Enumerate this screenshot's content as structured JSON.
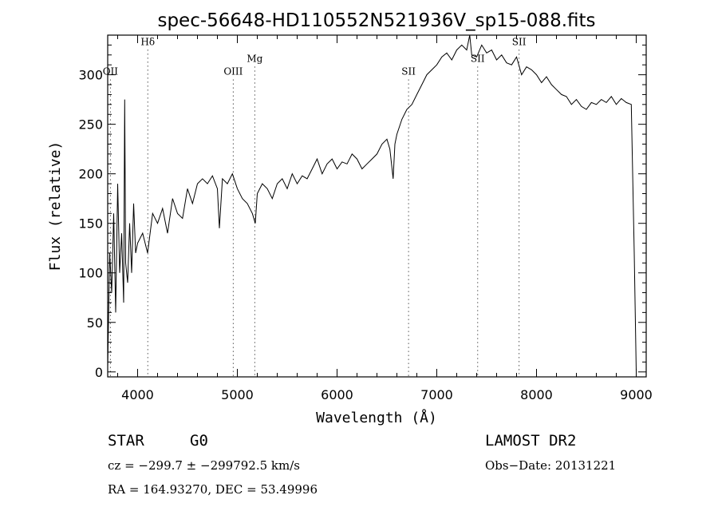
{
  "chart_data": {
    "type": "line",
    "title": "spec-56648-HD110552N521936V_sp15-088.fits",
    "xlabel": "Wavelength (Å)",
    "ylabel": "Flux (relative)",
    "xlim": [
      3700,
      9100
    ],
    "ylim": [
      -5,
      340
    ],
    "xticks": [
      4000,
      5000,
      6000,
      7000,
      8000,
      9000
    ],
    "yticks": [
      0,
      50,
      100,
      150,
      200,
      250,
      300
    ],
    "grid": false,
    "line_color": "#000000",
    "spectral_lines": [
      {
        "label": "OII",
        "wavelength": 3727,
        "label_flux": 300
      },
      {
        "label": "Hδ",
        "wavelength": 4102,
        "label_flux": 330
      },
      {
        "label": "OIII",
        "wavelength": 4959,
        "label_flux": 300
      },
      {
        "label": "Mg",
        "wavelength": 5175,
        "label_flux": 313
      },
      {
        "label": "SII",
        "wavelength": 6717,
        "label_flux": 300
      },
      {
        "label": "SII",
        "wavelength": 7410,
        "label_flux": 313
      },
      {
        "label": "SII",
        "wavelength": 7825,
        "label_flux": 330
      }
    ],
    "series": [
      {
        "x": [
          3700,
          3720,
          3740,
          3760,
          3780,
          3800,
          3820,
          3840,
          3860,
          3870,
          3880,
          3900,
          3920,
          3940,
          3960,
          3980,
          4000,
          4050,
          4100,
          4150,
          4200,
          4250,
          4300,
          4350,
          4400,
          4450,
          4500,
          4550,
          4600,
          4650,
          4700,
          4750,
          4800,
          4820,
          4850,
          4900,
          4950,
          5000,
          5050,
          5100,
          5150,
          5180,
          5200,
          5250,
          5300,
          5350,
          5400,
          5450,
          5500,
          5550,
          5600,
          5650,
          5700,
          5750,
          5800,
          5850,
          5900,
          5950,
          6000,
          6050,
          6100,
          6150,
          6200,
          6250,
          6300,
          6350,
          6400,
          6450,
          6500,
          6530,
          6562,
          6580,
          6600,
          6650,
          6700,
          6750,
          6800,
          6850,
          6900,
          6950,
          7000,
          7050,
          7100,
          7150,
          7200,
          7250,
          7300,
          7330,
          7350,
          7400,
          7450,
          7500,
          7550,
          7600,
          7650,
          7700,
          7750,
          7800,
          7850,
          7900,
          7950,
          8000,
          8050,
          8100,
          8150,
          8200,
          8250,
          8300,
          8350,
          8400,
          8450,
          8500,
          8550,
          8600,
          8650,
          8700,
          8750,
          8800,
          8850,
          8900,
          8950,
          8980,
          9000
        ],
        "y": [
          5,
          120,
          80,
          160,
          60,
          190,
          100,
          140,
          70,
          275,
          110,
          90,
          150,
          100,
          170,
          120,
          130,
          140,
          120,
          160,
          150,
          165,
          140,
          175,
          160,
          155,
          185,
          170,
          190,
          195,
          190,
          198,
          185,
          145,
          195,
          190,
          200,
          185,
          175,
          170,
          160,
          150,
          180,
          190,
          185,
          175,
          190,
          195,
          185,
          200,
          190,
          198,
          195,
          205,
          215,
          200,
          210,
          215,
          205,
          212,
          210,
          220,
          215,
          205,
          210,
          215,
          220,
          230,
          235,
          225,
          195,
          230,
          240,
          255,
          265,
          270,
          280,
          290,
          300,
          305,
          310,
          318,
          322,
          315,
          325,
          330,
          325,
          340,
          320,
          318,
          330,
          322,
          325,
          315,
          320,
          312,
          310,
          318,
          300,
          308,
          305,
          300,
          292,
          298,
          290,
          285,
          280,
          278,
          270,
          275,
          268,
          265,
          272,
          270,
          275,
          272,
          278,
          270,
          276,
          272,
          270,
          120,
          0
        ]
      }
    ]
  },
  "footer": {
    "object_class": "STAR",
    "subclass": "G0",
    "survey": "LAMOST DR2",
    "cz": "cz = −299.7 ± −299792.5 km/s",
    "obs_date": "Obs−Date: 20131221",
    "coords": "RA = 164.93270, DEC =  53.49996"
  }
}
